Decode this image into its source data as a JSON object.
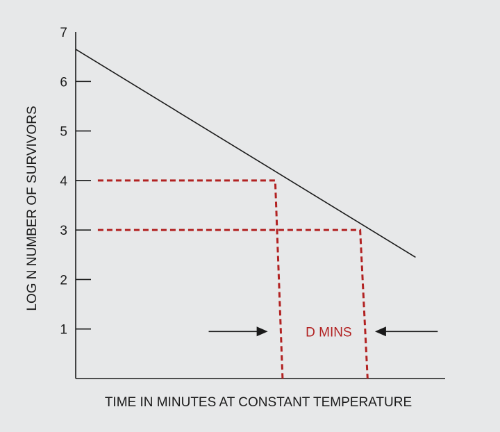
{
  "chart_data": {
    "type": "line",
    "ylabel": "LOG N NUMBER OF SURVIVORS",
    "xlabel": "TIME IN MINUTES AT CONSTANT TEMPERATURE",
    "ylim": [
      0,
      7
    ],
    "xlim": [
      0,
      10
    ],
    "x_ticks_labeled": false,
    "y_ticks": [
      1,
      2,
      3,
      4,
      5,
      6,
      7
    ],
    "grid": false,
    "series": [
      {
        "color": "#1a1a1a",
        "style": "solid",
        "points": [
          [
            0,
            6.65
          ],
          [
            9.2,
            2.45
          ]
        ]
      }
    ],
    "reference_lines": [
      {
        "color": "#b22222",
        "style": "dashed",
        "level": 4,
        "points": [
          [
            0.6,
            4
          ],
          [
            5.4,
            4
          ],
          [
            5.6,
            0
          ]
        ]
      },
      {
        "color": "#b22222",
        "style": "dashed",
        "level": 3,
        "points": [
          [
            0.6,
            3
          ],
          [
            7.7,
            3
          ],
          [
            7.9,
            0
          ]
        ]
      }
    ],
    "annotation": {
      "text": "D MINS",
      "color": "#b22222",
      "arrow_color": "#1a1a1a",
      "y": 0.95,
      "left_arrow_x": [
        3.6,
        5.2
      ],
      "right_arrow_x": [
        9.8,
        8.1
      ],
      "text_x": 6.85
    }
  }
}
